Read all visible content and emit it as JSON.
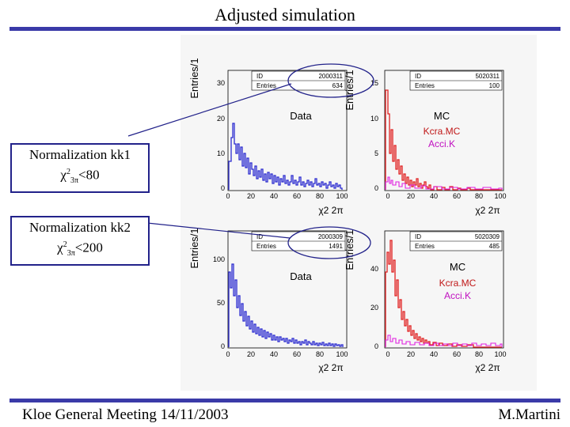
{
  "slide": {
    "title": "Adjusted simulation",
    "footer_left": "Kloe General Meeting 14/11/2003",
    "footer_right": "M.Martini"
  },
  "boxes": [
    {
      "line1": "Normalization kk1",
      "chi_symbol": "χ",
      "sup": "2",
      "sub": "3π",
      "cut": "<80"
    },
    {
      "line1": "Normalization kk2",
      "chi_symbol": "χ",
      "sup": "2",
      "sub": "3π",
      "cut": "<200"
    }
  ],
  "panels": {
    "top": {
      "data": {
        "ylabel": "Entries/1",
        "id_label": "ID",
        "id_value": "2000311",
        "entries_label": "Entries",
        "entries_value": "634",
        "label": "Data",
        "xlabel": "χ2 2π",
        "yticks": [
          "30",
          "20",
          "10",
          "0"
        ],
        "xticks": [
          "0",
          "20",
          "40",
          "60",
          "80",
          "100"
        ]
      },
      "mc": {
        "ylabel": "Entries/1",
        "id_label": "ID",
        "id_value": "5020311",
        "entries_label": "Entries",
        "entries_value": "100",
        "label": "MC",
        "label2": "Kcra.MC",
        "label3": "Acci.K",
        "xlabel": "χ2 2π",
        "yticks": [
          "15",
          "10",
          "5",
          "0"
        ],
        "xticks": [
          "0",
          "20",
          "40",
          "60",
          "80",
          "100"
        ]
      }
    },
    "bottom": {
      "data": {
        "ylabel": "Entries/1",
        "id_label": "ID",
        "id_value": "2000309",
        "entries_label": "Entries",
        "entries_value": "1491",
        "label": "Data",
        "xlabel": "χ2 2π",
        "yticks": [
          "100",
          "50",
          "0"
        ],
        "xticks": [
          "0",
          "20",
          "40",
          "60",
          "80",
          "100"
        ]
      },
      "mc": {
        "ylabel": "Entries/1",
        "id_label": "ID",
        "id_value": "5020309",
        "entries_label": "Entries",
        "entries_value": "485",
        "label": "MC",
        "label2": "Kcra.MC",
        "label3": "Acci.K",
        "xlabel": "χ2 2π",
        "yticks": [
          "40",
          "20",
          "0"
        ],
        "xticks": [
          "0",
          "20",
          "40",
          "60",
          "80",
          "100"
        ]
      }
    }
  },
  "colors": {
    "data_hist": "#2a2ad0",
    "mc_red": "#e02020",
    "mc_magenta": "#e020e0",
    "accent": "#3a3aa8"
  }
}
